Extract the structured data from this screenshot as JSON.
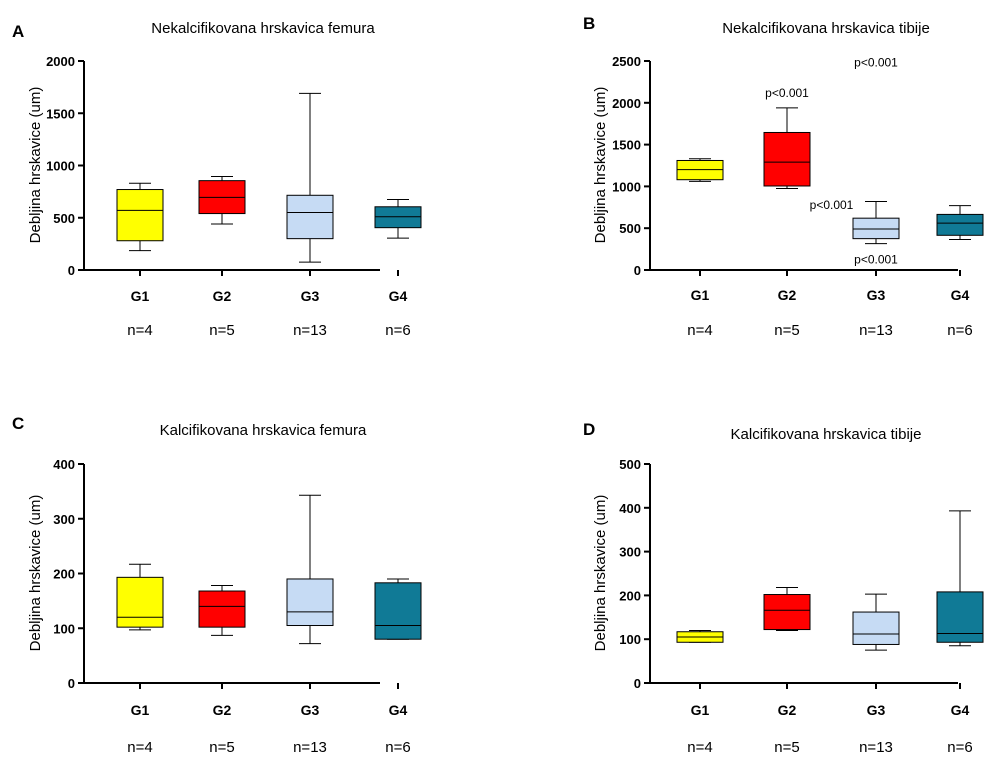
{
  "chart_data": [
    {
      "type": "box",
      "panel": "A",
      "title": "Nekalcifikovana hrskavica femura",
      "ylabel": "Debljina hrskavice (um)",
      "ylim": [
        0,
        2000
      ],
      "yticks": [
        0,
        500,
        1000,
        1500,
        2000
      ],
      "categories": [
        "G1",
        "G2",
        "G3",
        "G4"
      ],
      "n_labels": [
        "n=4",
        "n=5",
        "n=13",
        "n=6"
      ],
      "boxes": [
        {
          "group": "G1",
          "min": 185,
          "q1": 280,
          "median": 570,
          "q3": 770,
          "max": 830,
          "color": "#ffff00"
        },
        {
          "group": "G2",
          "min": 440,
          "q1": 540,
          "median": 695,
          "q3": 855,
          "max": 895,
          "color": "#ff0000"
        },
        {
          "group": "G3",
          "min": 75,
          "q1": 300,
          "median": 550,
          "q3": 715,
          "max": 1690,
          "color": "#c6dbf4"
        },
        {
          "group": "G4",
          "min": 305,
          "q1": 405,
          "median": 510,
          "q3": 605,
          "max": 675,
          "color": "#107a96"
        }
      ],
      "annotations": []
    },
    {
      "type": "box",
      "panel": "B",
      "title": "Nekalcifikovana hrskavica tibije",
      "ylabel": "Debljina hrskavice (um)",
      "ylim": [
        0,
        2500
      ],
      "yticks": [
        0,
        500,
        1000,
        1500,
        2000,
        2500
      ],
      "categories": [
        "G1",
        "G2",
        "G3",
        "G4"
      ],
      "n_labels": [
        "n=4",
        "n=5",
        "n=13",
        "n=6"
      ],
      "boxes": [
        {
          "group": "G1",
          "min": 1060,
          "q1": 1080,
          "median": 1200,
          "q3": 1310,
          "max": 1330,
          "color": "#ffff00"
        },
        {
          "group": "G2",
          "min": 975,
          "q1": 1005,
          "median": 1290,
          "q3": 1645,
          "max": 1940,
          "color": "#ff0000"
        },
        {
          "group": "G3",
          "min": 315,
          "q1": 375,
          "median": 490,
          "q3": 620,
          "max": 820,
          "color": "#c6dbf4"
        },
        {
          "group": "G4",
          "min": 365,
          "q1": 415,
          "median": 560,
          "q3": 665,
          "max": 770,
          "color": "#107a96"
        }
      ],
      "annotations": [
        {
          "text": "p<0.001",
          "group": 1,
          "y": 2120
        },
        {
          "text": "p<0.001",
          "group": 2,
          "y": 2480
        },
        {
          "text": "p<0.001",
          "group": 1.5,
          "y": 780
        },
        {
          "text": "p<0.001",
          "group": 2,
          "y": 125
        }
      ]
    },
    {
      "type": "box",
      "panel": "C",
      "title": "Kalcifikovana hrskavica femura",
      "ylabel": "Debljina hrskavice (um)",
      "ylim": [
        0,
        400
      ],
      "yticks": [
        0,
        100,
        200,
        300,
        400
      ],
      "categories": [
        "G1",
        "G2",
        "G3",
        "G4"
      ],
      "n_labels": [
        "n=4",
        "n=5",
        "n=13",
        "n=6"
      ],
      "boxes": [
        {
          "group": "G1",
          "min": 97,
          "q1": 102,
          "median": 120,
          "q3": 193,
          "max": 217,
          "color": "#ffff00"
        },
        {
          "group": "G2",
          "min": 87,
          "q1": 102,
          "median": 140,
          "q3": 168,
          "max": 178,
          "color": "#ff0000"
        },
        {
          "group": "G3",
          "min": 72,
          "q1": 105,
          "median": 130,
          "q3": 190,
          "max": 343,
          "color": "#c6dbf4"
        },
        {
          "group": "G4",
          "min": 80,
          "q1": 80,
          "median": 105,
          "q3": 183,
          "max": 190,
          "color": "#107a96"
        }
      ],
      "annotations": []
    },
    {
      "type": "box",
      "panel": "D",
      "title": "Kalcifikovana hrskavica tibije",
      "ylabel": "Debljina hrskavice (um)",
      "ylim": [
        0,
        500
      ],
      "yticks": [
        0,
        100,
        200,
        300,
        400,
        500
      ],
      "categories": [
        "G1",
        "G2",
        "G3",
        "G4"
      ],
      "n_labels": [
        "n=4",
        "n=5",
        "n=13",
        "n=6"
      ],
      "boxes": [
        {
          "group": "G1",
          "min": 93,
          "q1": 93,
          "median": 105,
          "q3": 117,
          "max": 120,
          "color": "#ffff00"
        },
        {
          "group": "G2",
          "min": 120,
          "q1": 122,
          "median": 166,
          "q3": 202,
          "max": 218,
          "color": "#ff0000"
        },
        {
          "group": "G3",
          "min": 75,
          "q1": 88,
          "median": 112,
          "q3": 162,
          "max": 203,
          "color": "#c6dbf4"
        },
        {
          "group": "G4",
          "min": 85,
          "q1": 93,
          "median": 113,
          "q3": 208,
          "max": 393,
          "color": "#107a96"
        }
      ],
      "annotations": []
    }
  ]
}
